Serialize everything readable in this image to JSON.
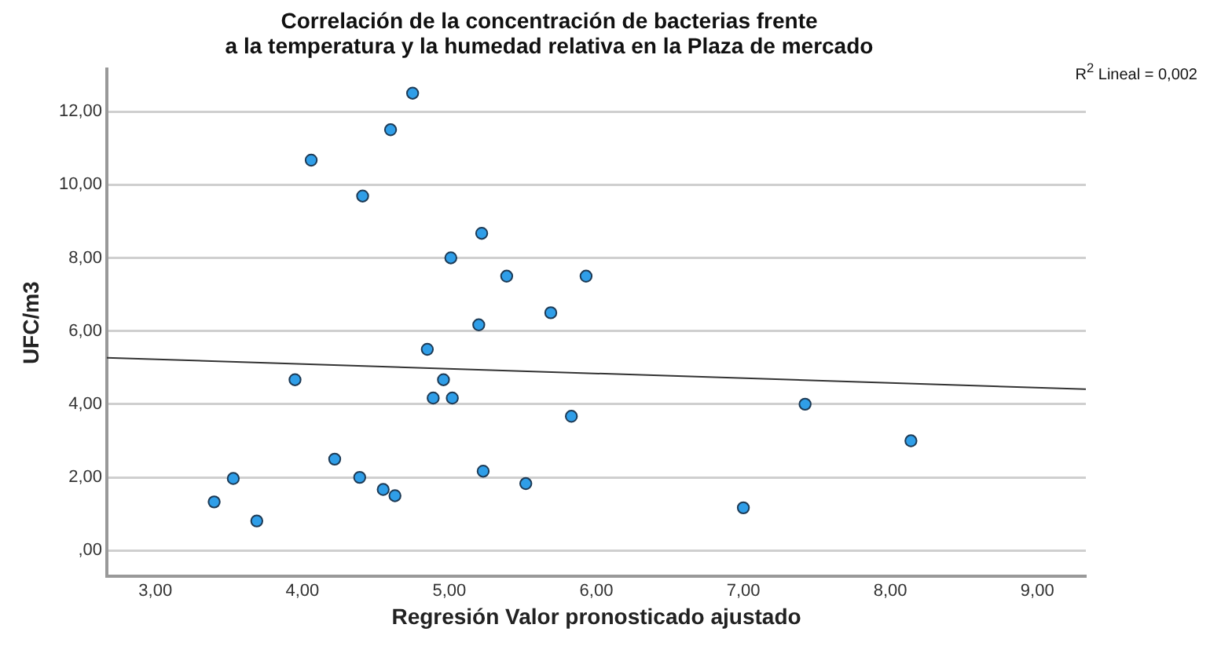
{
  "chart_data": {
    "type": "scatter",
    "title": "Correlación de la concentración de bacterias frente\na la temperatura y la humedad relativa en la Plaza de mercado",
    "xlabel": "Regresión Valor pronosticado ajustado",
    "ylabel": "UFC/m3",
    "x": [
      3.4,
      3.53,
      3.69,
      3.95,
      4.06,
      4.22,
      4.39,
      4.41,
      4.55,
      4.6,
      4.63,
      4.75,
      4.85,
      4.89,
      4.96,
      5.01,
      5.02,
      5.2,
      5.22,
      5.23,
      5.39,
      5.52,
      5.69,
      5.83,
      5.93,
      7.0,
      7.42,
      8.14
    ],
    "series": [
      {
        "color": "#2f9ee8",
        "values": [
          1.33,
          1.97,
          0.81,
          4.67,
          10.67,
          2.5,
          2.0,
          9.69,
          1.67,
          11.5,
          1.5,
          12.5,
          5.5,
          4.17,
          4.67,
          8.0,
          4.17,
          6.17,
          8.67,
          2.17,
          7.5,
          1.83,
          6.5,
          3.67,
          7.5,
          1.17,
          4.0,
          3.0
        ]
      },
      {
        "type": "line",
        "color": "#333333",
        "x": [
          2.67,
          9.33
        ],
        "values": [
          5.27,
          4.41
        ],
        "marker": "none"
      }
    ],
    "xlim": [
      2.67,
      9.33
    ],
    "ylim": [
      -0.7,
      13.15
    ],
    "xticks": [
      {
        "value": 3,
        "label": "3,00"
      },
      {
        "value": 4,
        "label": "4,00"
      },
      {
        "value": 5,
        "label": "5,00"
      },
      {
        "value": 6,
        "label": "6,00"
      },
      {
        "value": 7,
        "label": "7,00"
      },
      {
        "value": 8,
        "label": "8,00"
      },
      {
        "value": 9,
        "label": "9,00"
      }
    ],
    "yticks": [
      {
        "value": 0,
        "label": ",00"
      },
      {
        "value": 2,
        "label": "2,00"
      },
      {
        "value": 4,
        "label": "4,00"
      },
      {
        "value": 6,
        "label": "6,00"
      },
      {
        "value": 8,
        "label": "8,00"
      },
      {
        "value": 10,
        "label": "10,00"
      },
      {
        "value": 12,
        "label": "12,00"
      }
    ],
    "grid": "y",
    "legend": false,
    "marker": "circle",
    "annotations": [
      "R$^{2}$ Lineal = 0,002"
    ]
  }
}
